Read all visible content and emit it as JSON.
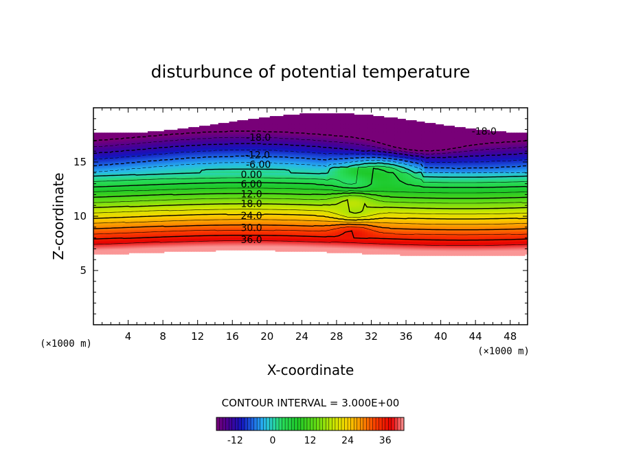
{
  "chart_data": {
    "type": "contour",
    "title": "disturbunce of potential temperature",
    "xlabel": "X-coordinate",
    "ylabel": "Z-coordinate",
    "x_unit": "(×1000 m)",
    "y_unit": "(×1000 m)",
    "xlim": [
      0,
      50
    ],
    "ylim": [
      0,
      20
    ],
    "x_ticks": [
      "4",
      "8",
      "12",
      "16",
      "20",
      "24",
      "28",
      "32",
      "36",
      "40",
      "44",
      "48"
    ],
    "y_ticks": [
      "5",
      "10",
      "15"
    ],
    "contour_interval_label": "CONTOUR INTERVAL = 3.000E+00",
    "contour_interval": 3.0,
    "colorbar": {
      "min": -18,
      "max": 42,
      "tick_labels": [
        "-12",
        "0",
        "12",
        "24",
        "36"
      ]
    },
    "contour_labels": [
      {
        "text": "-18.0",
        "x": 19,
        "y": 17.2
      },
      {
        "text": "-12.0",
        "x": 18.9,
        "y": 15.6
      },
      {
        "text": "-6.00",
        "x": 19.0,
        "y": 14.7
      },
      {
        "text": "0.00",
        "x": 18.2,
        "y": 13.8
      },
      {
        "text": "6.00",
        "x": 18.2,
        "y": 12.9
      },
      {
        "text": "12.0",
        "x": 18.2,
        "y": 12.0
      },
      {
        "text": "18.0",
        "x": 18.2,
        "y": 11.1
      },
      {
        "text": "24.0",
        "x": 18.2,
        "y": 10.0
      },
      {
        "text": "30.0",
        "x": 18.2,
        "y": 8.9
      },
      {
        "text": "36.0",
        "x": 18.2,
        "y": 7.8
      },
      {
        "text": "-18.0",
        "x": 45.0,
        "y": 17.8
      }
    ]
  }
}
